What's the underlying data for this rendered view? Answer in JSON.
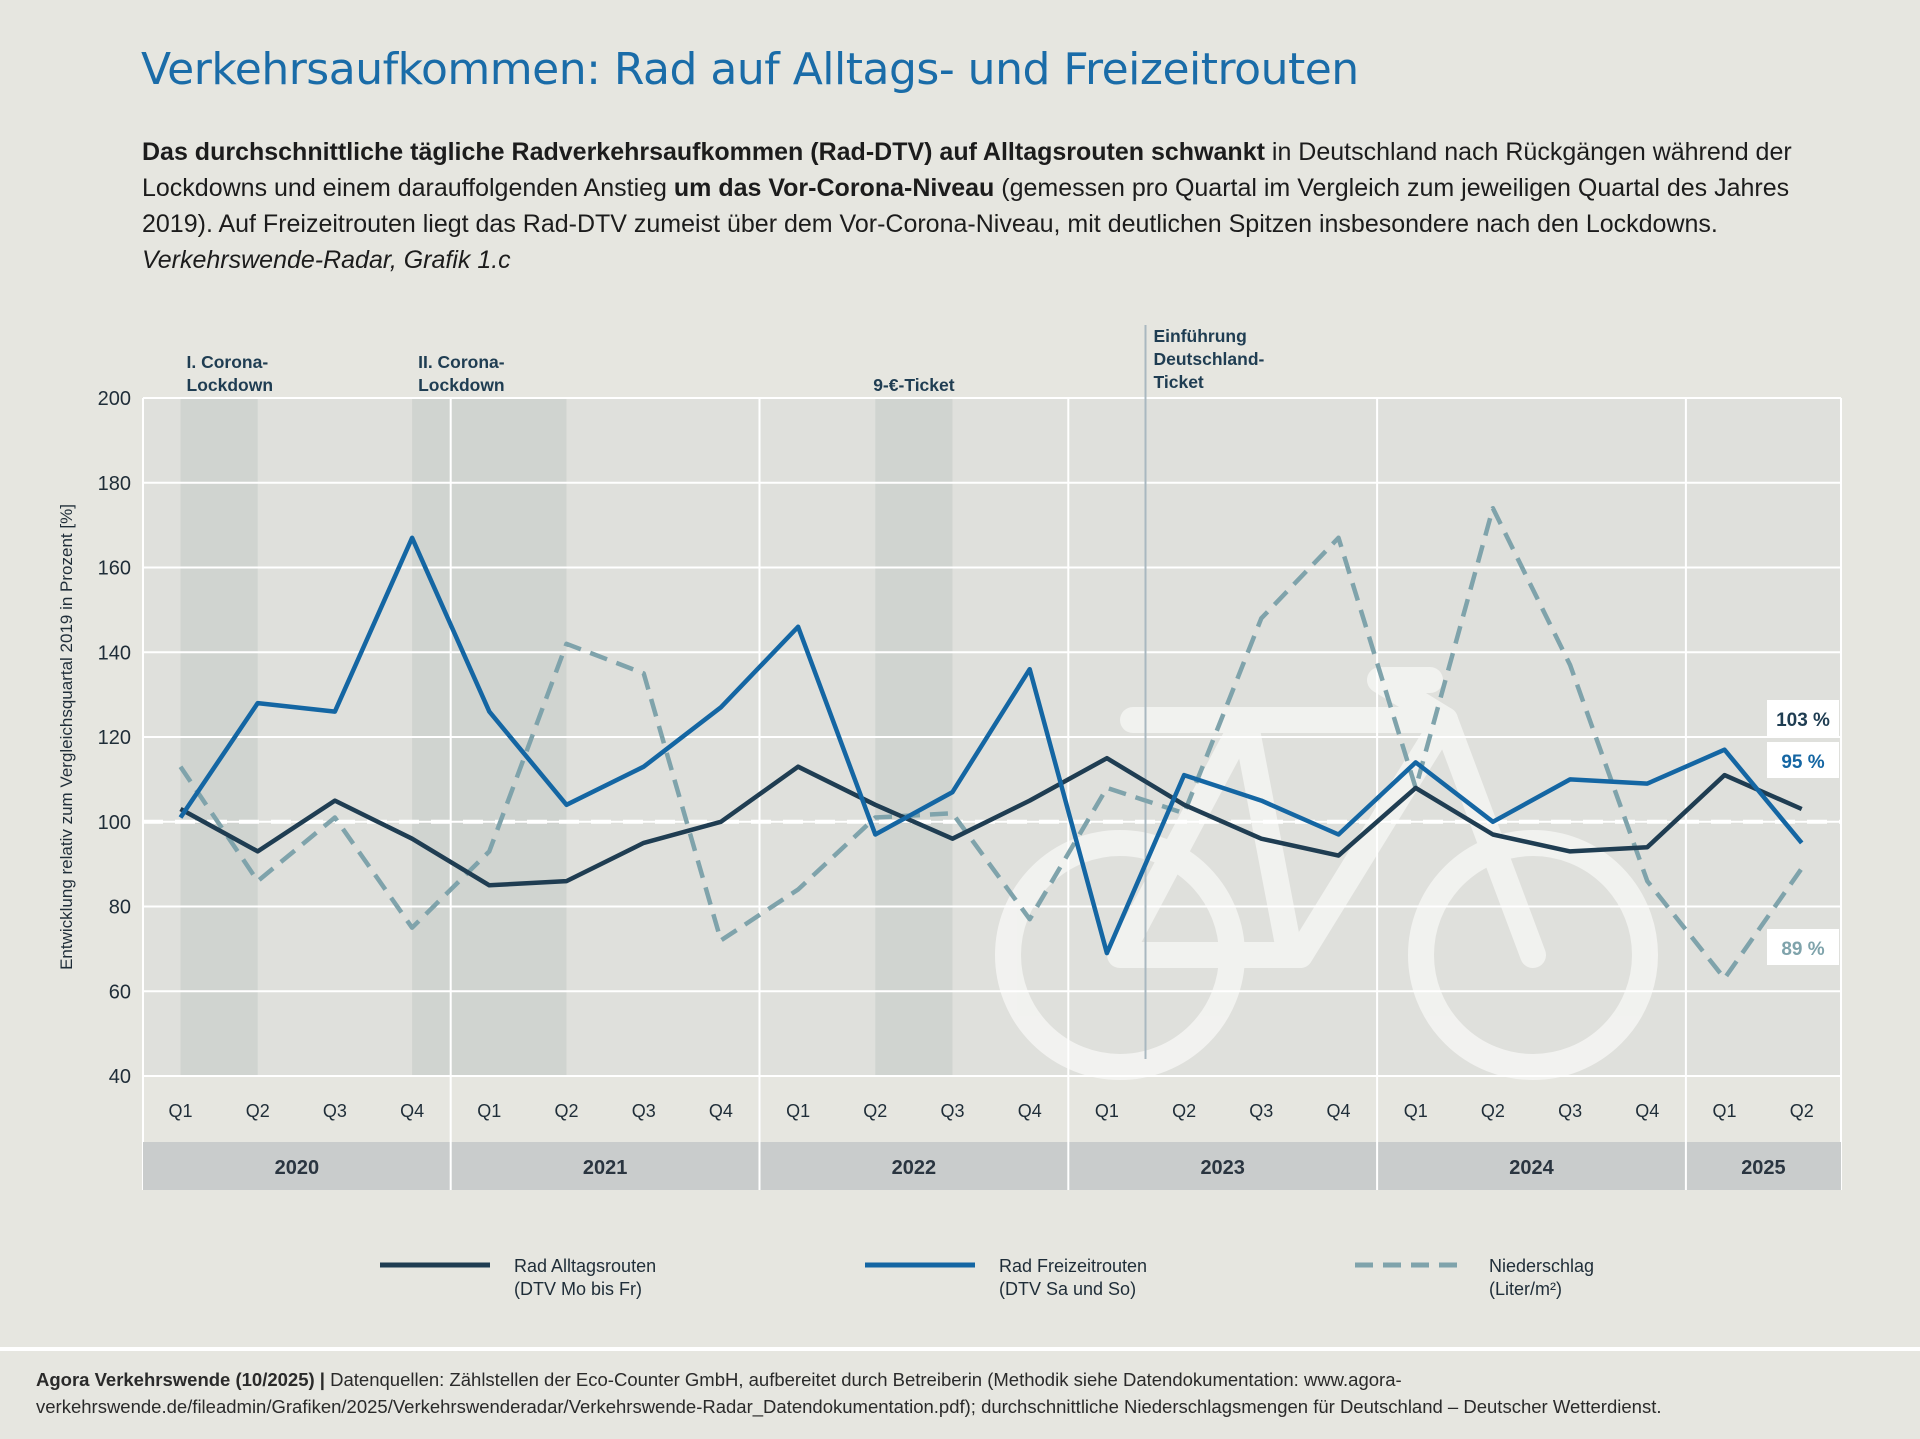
{
  "title": "Verkehrsaufkommen: Rad auf Alltags- und Freizeitrouten",
  "intro": {
    "bold1": "Das durchschnittliche tägliche Radverkehrsaufkommen (Rad-DTV) auf Alltagsrouten schwankt",
    "text1": " in Deutschland nach Rückgängen während der Lockdowns und einem darauffolgenden Anstieg ",
    "bold2": "um das Vor-Corona-Niveau",
    "text2": " (gemessen pro Quartal im Vergleich zum jeweiligen Quartal des Jahres 2019). Auf Freizeitrouten liegt das Rad-DTV zumeist über dem Vor-Corona-Niveau, mit deutlichen Spitzen insbesondere nach den Lockdowns. ",
    "italic": "Verkehrswende-Radar, Grafik 1.c"
  },
  "chart_data": {
    "type": "line",
    "ylabel": "Entwicklung relativ zum Vergleichsquartal 2019 in Prozent [%]",
    "ylim": [
      40,
      200
    ],
    "yticks": [
      40,
      60,
      80,
      100,
      120,
      140,
      160,
      180,
      200
    ],
    "grid": true,
    "reference_line": 100,
    "categories": [
      "Q1",
      "Q2",
      "Q3",
      "Q4",
      "Q1",
      "Q2",
      "Q3",
      "Q4",
      "Q1",
      "Q2",
      "Q3",
      "Q4",
      "Q1",
      "Q2",
      "Q3",
      "Q4",
      "Q1",
      "Q2",
      "Q3",
      "Q4",
      "Q1",
      "Q2"
    ],
    "years": [
      {
        "label": "2020",
        "start": 0,
        "end": 3
      },
      {
        "label": "2021",
        "start": 4,
        "end": 7
      },
      {
        "label": "2022",
        "start": 8,
        "end": 11
      },
      {
        "label": "2023",
        "start": 12,
        "end": 15
      },
      {
        "label": "2024",
        "start": 16,
        "end": 19
      },
      {
        "label": "2025",
        "start": 20,
        "end": 21
      }
    ],
    "bands": [
      {
        "label": "I. Corona-\nLockdown",
        "start": 0,
        "end": 1
      },
      {
        "label": "II. Corona-\nLockdown",
        "start": 3,
        "end": 5
      },
      {
        "label": "9-€-Ticket",
        "start": 9,
        "end": 10
      }
    ],
    "event_line": {
      "label": "Einführung\nDeutschland-\nTicket",
      "at": 12.5
    },
    "series": [
      {
        "name": "Rad Alltagsrouten",
        "note": "(DTV Mo bis Fr)",
        "color": "#1f3d52",
        "style": "solid",
        "values": [
          103,
          93,
          105,
          96,
          85,
          86,
          95,
          100,
          113,
          104,
          96,
          105,
          115,
          104,
          96,
          92,
          108,
          97,
          93,
          94,
          111,
          103
        ],
        "end_label": "103 %"
      },
      {
        "name": "Rad Freizeitrouten",
        "note": "(DTV Sa und So)",
        "color": "#1466a3",
        "style": "solid",
        "values": [
          101,
          128,
          126,
          167,
          126,
          104,
          113,
          127,
          146,
          97,
          107,
          136,
          69,
          111,
          105,
          97,
          114,
          100,
          110,
          109,
          117,
          95
        ],
        "end_label": "95 %"
      },
      {
        "name": "Niederschlag",
        "note": "(Liter/m²)",
        "color": "#7fa3ab",
        "style": "dashed",
        "values": [
          113,
          86,
          101,
          75,
          93,
          142,
          135,
          72,
          84,
          101,
          102,
          77,
          108,
          102,
          148,
          167,
          108,
          174,
          137,
          86,
          63,
          89
        ],
        "end_label": "89 %"
      }
    ]
  },
  "footer": {
    "bold": "Agora Verkehrswende (10/2025) |",
    "text": " Datenquellen: Zählstellen der Eco-Counter GmbH, aufbereitet durch Betreiberin (Methodik siehe Datendokumentation: www.agora-verkehrswende.de/fileadmin/Grafiken/2025/Verkehrswenderadar/Verkehrswende-Radar_Datendokumentation.pdf); durchschnittliche Niederschlagsmengen für Deutschland – Deutscher Wetterdienst."
  }
}
